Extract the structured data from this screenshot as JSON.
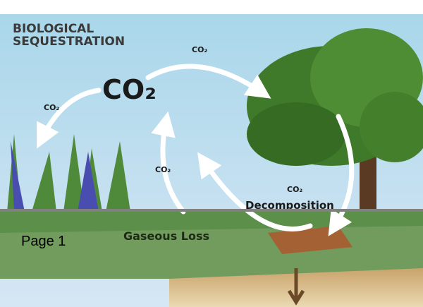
{
  "title": {
    "line1": "BIOLOGICAL",
    "line2": "SEQUESTRATION"
  },
  "labels": {
    "main": "CO₂",
    "top": "CO₂",
    "left": "CO₂",
    "middle": "CO₂",
    "right": "CO₂",
    "decomposition": "Decomposition",
    "gaseous_loss": "Gaseous Loss"
  },
  "page_label": "Page 1"
}
